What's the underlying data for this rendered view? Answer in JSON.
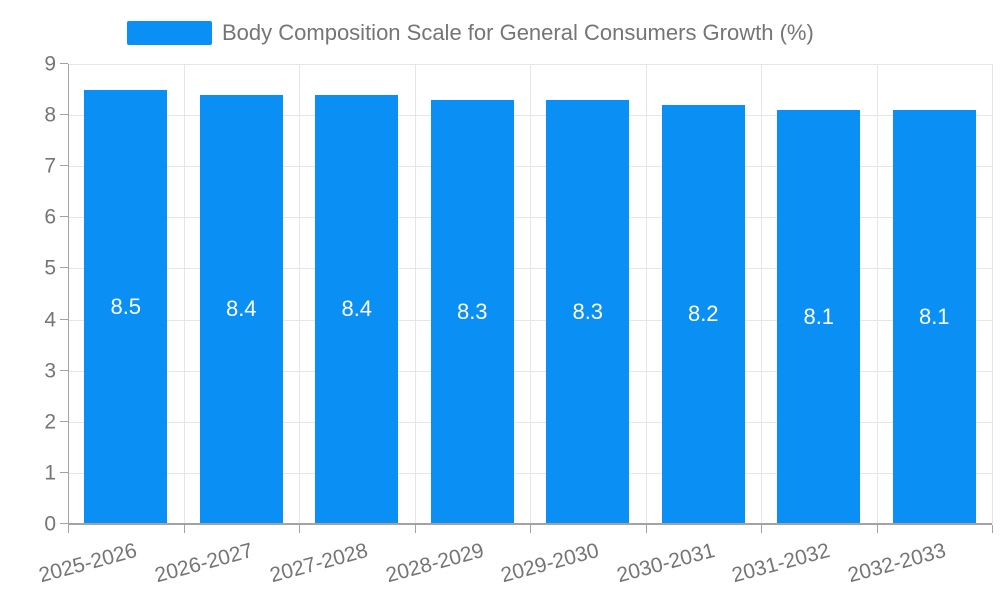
{
  "legend": {
    "label": "Body Composition Scale for General Consumers Growth (%)"
  },
  "colors": {
    "bar": "#0a90f4",
    "grid": "#e6e6e6",
    "axis": "#a3a3a3",
    "text": "#757575",
    "bar_label": "#ffffff",
    "background": "#ffffff"
  },
  "chart_data": {
    "type": "bar",
    "title": "Body Composition Scale for General Consumers Growth (%)",
    "series": [
      {
        "name": "Body Composition Scale for General Consumers Growth (%)",
        "values": [
          8.5,
          8.4,
          8.4,
          8.3,
          8.3,
          8.2,
          8.1,
          8.1
        ]
      }
    ],
    "categories": [
      "2025-2026",
      "2026-2027",
      "2027-2028",
      "2028-2029",
      "2029-2030",
      "2030-2031",
      "2031-2032",
      "2032-2033"
    ],
    "bar_labels": [
      "8.5",
      "8.4",
      "8.4",
      "8.3",
      "8.3",
      "8.2",
      "8.1",
      "8.1"
    ],
    "xlabel": "",
    "ylabel": "",
    "ylim": [
      0,
      9
    ],
    "yticks": [
      "0",
      "1",
      "2",
      "3",
      "4",
      "5",
      "6",
      "7",
      "8",
      "9"
    ],
    "grid": true,
    "legend_position": "top",
    "x_label_rotation": -15
  }
}
